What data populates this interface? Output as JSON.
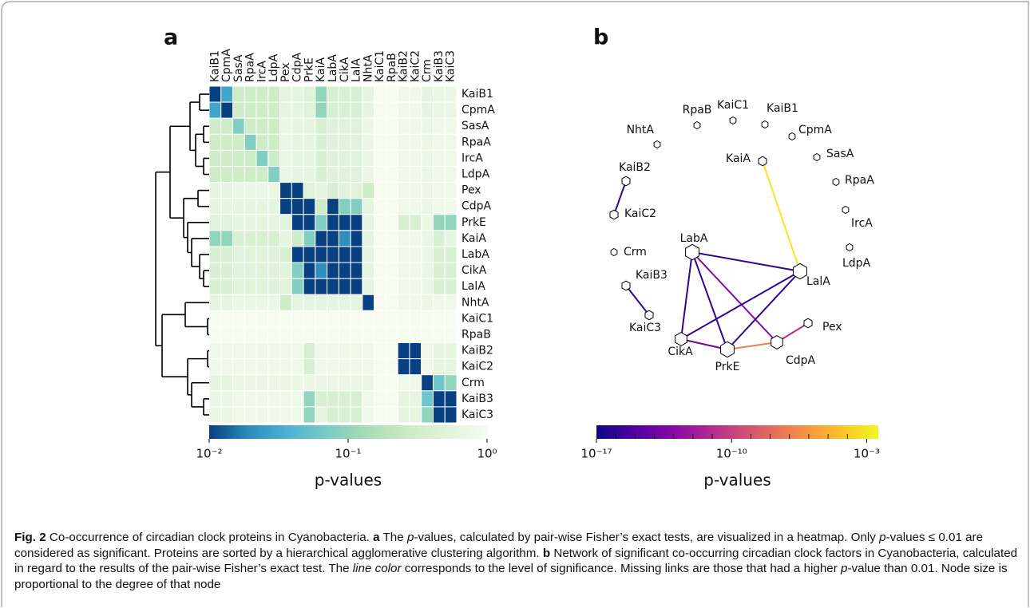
{
  "panel_a": {
    "label": "a",
    "type": "heatmap",
    "columns": [
      "KaiB1",
      "CpmA",
      "SasA",
      "RpaA",
      "IrcA",
      "LdpA",
      "Pex",
      "CdpA",
      "PrkE",
      "KaiA",
      "LabA",
      "CikA",
      "LalA",
      "NhtA",
      "KaiC1",
      "RpaB",
      "KaiB2",
      "KaiC2",
      "Crm",
      "KaiB3",
      "KaiC3"
    ],
    "rows": [
      "KaiB1",
      "CpmA",
      "SasA",
      "RpaA",
      "IrcA",
      "LdpA",
      "Pex",
      "CdpA",
      "PrkE",
      "KaiA",
      "LabA",
      "CikA",
      "LalA",
      "NhtA",
      "KaiC1",
      "RpaB",
      "KaiB2",
      "KaiC2",
      "Crm",
      "KaiB3",
      "KaiC3"
    ],
    "values": [
      [
        0.01,
        0.03,
        0.3,
        0.3,
        0.3,
        0.3,
        0.6,
        0.6,
        0.5,
        0.1,
        0.4,
        0.4,
        0.4,
        0.6,
        1,
        1,
        0.8,
        0.8,
        0.6,
        0.7,
        0.7
      ],
      [
        0.03,
        0.01,
        0.3,
        0.3,
        0.3,
        0.3,
        0.6,
        0.6,
        0.5,
        0.1,
        0.4,
        0.4,
        0.4,
        0.6,
        1,
        1,
        0.8,
        0.8,
        0.6,
        0.7,
        0.7
      ],
      [
        0.3,
        0.3,
        0.08,
        0.3,
        0.3,
        0.3,
        0.7,
        0.6,
        0.6,
        0.4,
        0.5,
        0.5,
        0.5,
        0.7,
        1,
        1,
        0.8,
        0.8,
        0.7,
        0.8,
        0.8
      ],
      [
        0.3,
        0.3,
        0.3,
        0.08,
        0.3,
        0.3,
        0.7,
        0.6,
        0.6,
        0.4,
        0.5,
        0.5,
        0.5,
        0.7,
        1,
        1,
        0.8,
        0.8,
        0.7,
        0.8,
        0.8
      ],
      [
        0.3,
        0.3,
        0.3,
        0.3,
        0.08,
        0.3,
        0.7,
        0.6,
        0.6,
        0.4,
        0.5,
        0.5,
        0.5,
        0.7,
        1,
        1,
        0.8,
        0.8,
        0.7,
        0.8,
        0.8
      ],
      [
        0.3,
        0.3,
        0.3,
        0.3,
        0.3,
        0.08,
        0.7,
        0.6,
        0.6,
        0.4,
        0.5,
        0.5,
        0.5,
        0.7,
        1,
        1,
        0.8,
        0.8,
        0.7,
        0.8,
        0.8
      ],
      [
        0.6,
        0.6,
        0.7,
        0.7,
        0.7,
        0.7,
        0.01,
        0.01,
        0.5,
        0.6,
        0.4,
        0.5,
        0.5,
        0.3,
        1,
        1,
        0.8,
        0.8,
        0.7,
        0.8,
        0.8
      ],
      [
        0.6,
        0.6,
        0.6,
        0.6,
        0.6,
        0.6,
        0.01,
        0.01,
        0.01,
        0.3,
        0.01,
        0.08,
        0.08,
        0.6,
        1,
        1,
        0.8,
        0.8,
        0.7,
        0.8,
        0.8
      ],
      [
        0.5,
        0.5,
        0.6,
        0.6,
        0.6,
        0.6,
        0.5,
        0.01,
        0.01,
        0.08,
        0.01,
        0.01,
        0.01,
        0.6,
        1,
        1,
        0.4,
        0.4,
        0.7,
        0.1,
        0.1
      ],
      [
        0.1,
        0.1,
        0.4,
        0.4,
        0.4,
        0.4,
        0.6,
        0.3,
        0.08,
        0.01,
        0.01,
        0.02,
        0.01,
        0.6,
        1,
        1,
        0.8,
        0.8,
        0.7,
        0.4,
        0.6
      ],
      [
        0.4,
        0.4,
        0.5,
        0.5,
        0.5,
        0.5,
        0.4,
        0.01,
        0.01,
        0.01,
        0.01,
        0.01,
        0.01,
        0.6,
        1,
        1,
        0.8,
        0.8,
        0.7,
        0.4,
        0.4
      ],
      [
        0.4,
        0.4,
        0.5,
        0.5,
        0.5,
        0.5,
        0.5,
        0.08,
        0.01,
        0.02,
        0.01,
        0.01,
        0.01,
        0.6,
        1,
        1,
        0.8,
        0.8,
        0.7,
        0.4,
        0.4
      ],
      [
        0.4,
        0.4,
        0.5,
        0.5,
        0.5,
        0.5,
        0.5,
        0.08,
        0.01,
        0.01,
        0.01,
        0.01,
        0.01,
        0.6,
        1,
        1,
        0.8,
        0.8,
        0.7,
        0.4,
        0.4
      ],
      [
        0.6,
        0.6,
        0.7,
        0.7,
        0.7,
        0.7,
        0.3,
        0.6,
        0.6,
        0.6,
        0.6,
        0.6,
        0.6,
        0.01,
        1,
        1,
        0.8,
        0.8,
        0.7,
        0.8,
        0.8
      ],
      [
        1,
        1,
        1,
        1,
        1,
        1,
        1,
        1,
        1,
        1,
        1,
        1,
        1,
        1,
        1,
        1,
        1,
        1,
        1,
        1,
        1
      ],
      [
        1,
        1,
        1,
        1,
        1,
        1,
        1,
        1,
        1,
        1,
        1,
        1,
        1,
        1,
        1,
        1,
        1,
        1,
        1,
        1,
        1
      ],
      [
        0.8,
        0.8,
        0.8,
        0.8,
        0.8,
        0.8,
        0.8,
        0.8,
        0.4,
        0.8,
        0.8,
        0.8,
        0.8,
        0.8,
        1,
        1,
        0.01,
        0.01,
        0.8,
        0.6,
        0.6
      ],
      [
        0.8,
        0.8,
        0.8,
        0.8,
        0.8,
        0.8,
        0.8,
        0.8,
        0.4,
        0.8,
        0.8,
        0.8,
        0.8,
        0.8,
        1,
        1,
        0.01,
        0.01,
        0.8,
        0.6,
        0.6
      ],
      [
        0.6,
        0.6,
        0.7,
        0.7,
        0.7,
        0.7,
        0.7,
        0.7,
        0.7,
        0.7,
        0.7,
        0.7,
        0.7,
        0.7,
        1,
        1,
        0.8,
        0.8,
        0.01,
        0.06,
        0.1
      ],
      [
        0.7,
        0.7,
        0.8,
        0.8,
        0.8,
        0.8,
        0.8,
        0.8,
        0.1,
        0.4,
        0.4,
        0.4,
        0.4,
        0.8,
        1,
        1,
        0.6,
        0.6,
        0.06,
        0.01,
        0.01
      ],
      [
        0.7,
        0.7,
        0.8,
        0.8,
        0.8,
        0.8,
        0.8,
        0.8,
        0.1,
        0.6,
        0.4,
        0.4,
        0.4,
        0.8,
        1,
        1,
        0.6,
        0.6,
        0.1,
        0.01,
        0.01
      ]
    ],
    "log_scale": true,
    "colormap": [
      "#084081",
      "#2b8cbe",
      "#4eb3d3",
      "#7bccc4",
      "#a8ddb5",
      "#ccebc5",
      "#e0f3db",
      "#f7fcf0"
    ],
    "colorbar": {
      "lim": [
        0.01,
        1
      ],
      "ticks": [
        {
          "value": 0.01,
          "label": "10⁻²"
        },
        {
          "value": 0.1,
          "label": "10⁻¹"
        },
        {
          "value": 1,
          "label": "10⁰"
        }
      ],
      "label": "p-values"
    }
  },
  "panel_b": {
    "label": "b",
    "type": "network",
    "nodes": [
      "KaiB1",
      "CpmA",
      "SasA",
      "RpaA",
      "IrcA",
      "LdpA",
      "Pex",
      "CdpA",
      "PrkE",
      "KaiA",
      "LabA",
      "CikA",
      "LalA",
      "NhtA",
      "KaiC1",
      "RpaB",
      "KaiB2",
      "KaiC2",
      "Crm",
      "KaiB3",
      "KaiC3"
    ],
    "edges": [
      {
        "source": "KaiA",
        "target": "LalA",
        "p_value": 0.001
      },
      {
        "source": "CdpA",
        "target": "PrkE",
        "p_value": 1e-07
      },
      {
        "source": "Pex",
        "target": "CdpA",
        "p_value": 1e-11
      },
      {
        "source": "LabA",
        "target": "CdpA",
        "p_value": 1e-13
      },
      {
        "source": "CikA",
        "target": "PrkE",
        "p_value": 1e-14
      },
      {
        "source": "LabA",
        "target": "PrkE",
        "p_value": 1e-16
      },
      {
        "source": "LabA",
        "target": "CikA",
        "p_value": 1e-16
      },
      {
        "source": "LabA",
        "target": "LalA",
        "p_value": 1e-16
      },
      {
        "source": "CikA",
        "target": "LalA",
        "p_value": 1e-16
      },
      {
        "source": "PrkE",
        "target": "LalA",
        "p_value": 1e-16
      },
      {
        "source": "KaiB2",
        "target": "KaiC2",
        "p_value": 1e-16
      },
      {
        "source": "KaiB3",
        "target": "KaiC3",
        "p_value": 1e-16
      }
    ],
    "log_scale": true,
    "colormap": [
      "#0d0887",
      "#5302a3",
      "#8b0aa5",
      "#b83289",
      "#db5c68",
      "#f48849",
      "#febd2a",
      "#f0f921"
    ],
    "colorbar": {
      "lim": [
        1e-17,
        0.004
      ],
      "ticks": [
        {
          "value": 1e-17,
          "label": "10⁻¹⁷"
        },
        {
          "value": 1e-10,
          "label": "10⁻¹⁰"
        },
        {
          "value": 0.001,
          "label": "10⁻³"
        }
      ],
      "minor_ticks": [
        1e-16,
        1e-15,
        1e-14,
        1e-13,
        1e-12,
        1e-11,
        1e-09,
        1e-08,
        1e-07,
        1e-06,
        1e-05,
        0.0001
      ],
      "label": "p-values"
    }
  },
  "caption": [
    "Fig. 2",
    "Co-occurrence of circadian clock proteins in Cyanobacteria.",
    "a",
    "The",
    "p",
    "-values, calculated by pair-wise Fisher’s exact tests, are visualized in a heatmap. Only",
    "p",
    "-values ≤ 0.01 are considered as significant. Proteins are sorted by a hierarchical agglomerative clustering algorithm.",
    "b",
    "Network of significant co-occurring circadian clock factors in Cyanobacteria, calculated in regard to the results of the pair-wise Fisher’s exact test. The",
    "line color",
    "corresponds to the level of significance. Missing links are those that had a higher",
    "p",
    "-value than 0.01. Node size is proportional to the degree of that node"
  ]
}
